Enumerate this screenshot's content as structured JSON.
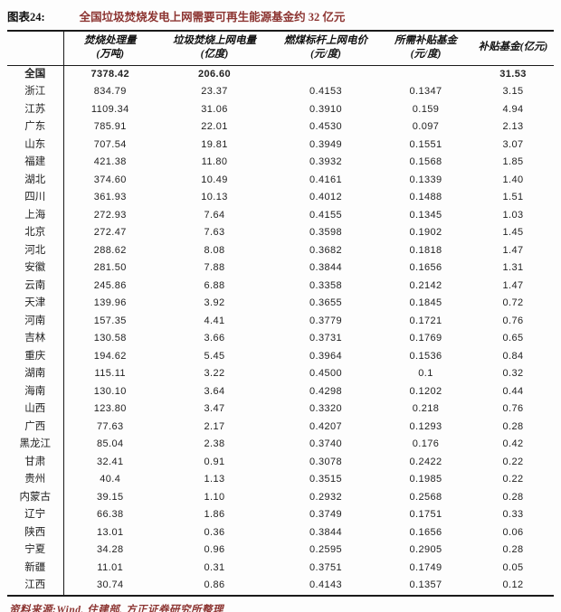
{
  "title": {
    "figure_label": "图表24:",
    "figure_title": "全国垃圾焚烧发电上网需要可再生能源基金约 32 亿元"
  },
  "colors": {
    "accent_red": "#8c3431",
    "text_black": "#1c1c1c",
    "border_black": "#1a1a1a"
  },
  "table": {
    "headers": [
      {
        "line1": "",
        "line2": ""
      },
      {
        "line1": "焚烧处理量",
        "line2": "(万吨)"
      },
      {
        "line1": "垃圾焚烧上网电量",
        "line2": "(亿度)"
      },
      {
        "line1": "燃煤标杆上网电价",
        "line2": "(元/度)"
      },
      {
        "line1": "所需补贴基金",
        "line2": "(元/度)"
      },
      {
        "line1": "补贴基金(亿元)",
        "line2": ""
      }
    ],
    "rows": [
      {
        "region": "全国",
        "incineration_volume": "7378.42",
        "grid_power": "206.60",
        "benchmark_price": "",
        "subsidy_per_kwh": "",
        "subsidy_fund": "31.53",
        "bold": true
      },
      {
        "region": "浙江",
        "incineration_volume": "834.79",
        "grid_power": "23.37",
        "benchmark_price": "0.4153",
        "subsidy_per_kwh": "0.1347",
        "subsidy_fund": "3.15",
        "bold": false
      },
      {
        "region": "江苏",
        "incineration_volume": "1109.34",
        "grid_power": "31.06",
        "benchmark_price": "0.3910",
        "subsidy_per_kwh": "0.159",
        "subsidy_fund": "4.94",
        "bold": false
      },
      {
        "region": "广东",
        "incineration_volume": "785.91",
        "grid_power": "22.01",
        "benchmark_price": "0.4530",
        "subsidy_per_kwh": "0.097",
        "subsidy_fund": "2.13",
        "bold": false
      },
      {
        "region": "山东",
        "incineration_volume": "707.54",
        "grid_power": "19.81",
        "benchmark_price": "0.3949",
        "subsidy_per_kwh": "0.1551",
        "subsidy_fund": "3.07",
        "bold": false
      },
      {
        "region": "福建",
        "incineration_volume": "421.38",
        "grid_power": "11.80",
        "benchmark_price": "0.3932",
        "subsidy_per_kwh": "0.1568",
        "subsidy_fund": "1.85",
        "bold": false
      },
      {
        "region": "湖北",
        "incineration_volume": "374.60",
        "grid_power": "10.49",
        "benchmark_price": "0.4161",
        "subsidy_per_kwh": "0.1339",
        "subsidy_fund": "1.40",
        "bold": false
      },
      {
        "region": "四川",
        "incineration_volume": "361.93",
        "grid_power": "10.13",
        "benchmark_price": "0.4012",
        "subsidy_per_kwh": "0.1488",
        "subsidy_fund": "1.51",
        "bold": false
      },
      {
        "region": "上海",
        "incineration_volume": "272.93",
        "grid_power": "7.64",
        "benchmark_price": "0.4155",
        "subsidy_per_kwh": "0.1345",
        "subsidy_fund": "1.03",
        "bold": false
      },
      {
        "region": "北京",
        "incineration_volume": "272.47",
        "grid_power": "7.63",
        "benchmark_price": "0.3598",
        "subsidy_per_kwh": "0.1902",
        "subsidy_fund": "1.45",
        "bold": false
      },
      {
        "region": "河北",
        "incineration_volume": "288.62",
        "grid_power": "8.08",
        "benchmark_price": "0.3682",
        "subsidy_per_kwh": "0.1818",
        "subsidy_fund": "1.47",
        "bold": false
      },
      {
        "region": "安徽",
        "incineration_volume": "281.50",
        "grid_power": "7.88",
        "benchmark_price": "0.3844",
        "subsidy_per_kwh": "0.1656",
        "subsidy_fund": "1.31",
        "bold": false
      },
      {
        "region": "云南",
        "incineration_volume": "245.86",
        "grid_power": "6.88",
        "benchmark_price": "0.3358",
        "subsidy_per_kwh": "0.2142",
        "subsidy_fund": "1.47",
        "bold": false
      },
      {
        "region": "天津",
        "incineration_volume": "139.96",
        "grid_power": "3.92",
        "benchmark_price": "0.3655",
        "subsidy_per_kwh": "0.1845",
        "subsidy_fund": "0.72",
        "bold": false
      },
      {
        "region": "河南",
        "incineration_volume": "157.35",
        "grid_power": "4.41",
        "benchmark_price": "0.3779",
        "subsidy_per_kwh": "0.1721",
        "subsidy_fund": "0.76",
        "bold": false
      },
      {
        "region": "吉林",
        "incineration_volume": "130.58",
        "grid_power": "3.66",
        "benchmark_price": "0.3731",
        "subsidy_per_kwh": "0.1769",
        "subsidy_fund": "0.65",
        "bold": false
      },
      {
        "region": "重庆",
        "incineration_volume": "194.62",
        "grid_power": "5.45",
        "benchmark_price": "0.3964",
        "subsidy_per_kwh": "0.1536",
        "subsidy_fund": "0.84",
        "bold": false
      },
      {
        "region": "湖南",
        "incineration_volume": "115.11",
        "grid_power": "3.22",
        "benchmark_price": "0.4500",
        "subsidy_per_kwh": "0.1",
        "subsidy_fund": "0.32",
        "bold": false
      },
      {
        "region": "海南",
        "incineration_volume": "130.10",
        "grid_power": "3.64",
        "benchmark_price": "0.4298",
        "subsidy_per_kwh": "0.1202",
        "subsidy_fund": "0.44",
        "bold": false
      },
      {
        "region": "山西",
        "incineration_volume": "123.80",
        "grid_power": "3.47",
        "benchmark_price": "0.3320",
        "subsidy_per_kwh": "0.218",
        "subsidy_fund": "0.76",
        "bold": false
      },
      {
        "region": "广西",
        "incineration_volume": "77.63",
        "grid_power": "2.17",
        "benchmark_price": "0.4207",
        "subsidy_per_kwh": "0.1293",
        "subsidy_fund": "0.28",
        "bold": false
      },
      {
        "region": "黑龙江",
        "incineration_volume": "85.04",
        "grid_power": "2.38",
        "benchmark_price": "0.3740",
        "subsidy_per_kwh": "0.176",
        "subsidy_fund": "0.42",
        "bold": false
      },
      {
        "region": "甘肃",
        "incineration_volume": "32.41",
        "grid_power": "0.91",
        "benchmark_price": "0.3078",
        "subsidy_per_kwh": "0.2422",
        "subsidy_fund": "0.22",
        "bold": false
      },
      {
        "region": "贵州",
        "incineration_volume": "40.4",
        "grid_power": "1.13",
        "benchmark_price": "0.3515",
        "subsidy_per_kwh": "0.1985",
        "subsidy_fund": "0.22",
        "bold": false
      },
      {
        "region": "内蒙古",
        "incineration_volume": "39.15",
        "grid_power": "1.10",
        "benchmark_price": "0.2932",
        "subsidy_per_kwh": "0.2568",
        "subsidy_fund": "0.28",
        "bold": false
      },
      {
        "region": "辽宁",
        "incineration_volume": "66.38",
        "grid_power": "1.86",
        "benchmark_price": "0.3749",
        "subsidy_per_kwh": "0.1751",
        "subsidy_fund": "0.33",
        "bold": false
      },
      {
        "region": "陕西",
        "incineration_volume": "13.01",
        "grid_power": "0.36",
        "benchmark_price": "0.3844",
        "subsidy_per_kwh": "0.1656",
        "subsidy_fund": "0.06",
        "bold": false
      },
      {
        "region": "宁夏",
        "incineration_volume": "34.28",
        "grid_power": "0.96",
        "benchmark_price": "0.2595",
        "subsidy_per_kwh": "0.2905",
        "subsidy_fund": "0.28",
        "bold": false
      },
      {
        "region": "新疆",
        "incineration_volume": "11.01",
        "grid_power": "0.31",
        "benchmark_price": "0.3751",
        "subsidy_per_kwh": "0.1749",
        "subsidy_fund": "0.05",
        "bold": false
      },
      {
        "region": "江西",
        "incineration_volume": "30.74",
        "grid_power": "0.86",
        "benchmark_price": "0.4143",
        "subsidy_per_kwh": "0.1357",
        "subsidy_fund": "0.12",
        "bold": false
      }
    ]
  },
  "footer": {
    "source_text": "资料来源:Wind, 住建部, 方正证券研究所整理"
  }
}
